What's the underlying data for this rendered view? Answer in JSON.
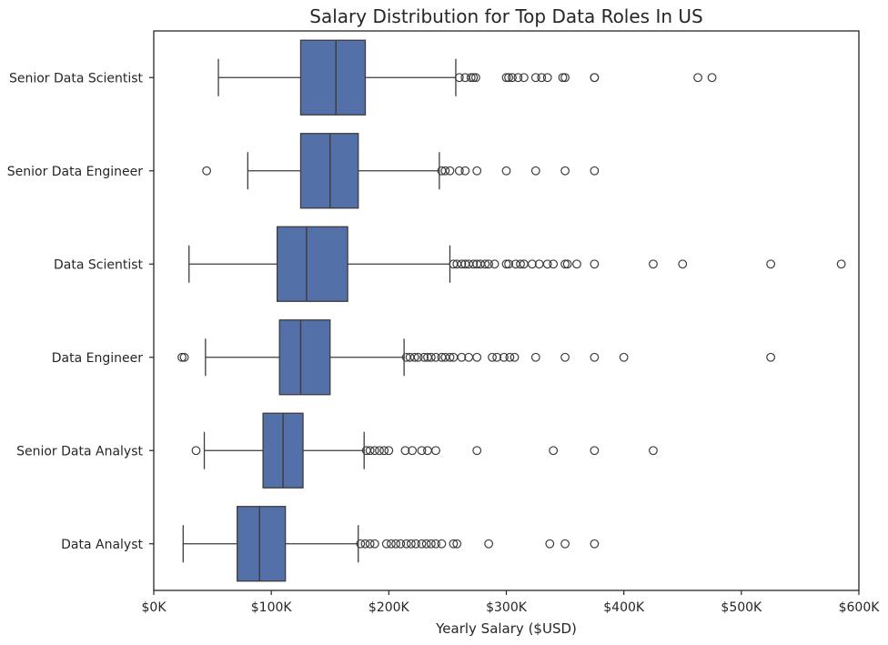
{
  "chart_data": {
    "type": "box",
    "orientation": "horizontal",
    "title": "Salary Distribution for Top Data Roles In US",
    "xlabel": "Yearly Salary ($USD)",
    "ylabel": "",
    "xlim": [
      0,
      600000
    ],
    "xticks": [
      0,
      100000,
      200000,
      300000,
      400000,
      500000,
      600000
    ],
    "xtick_labels": [
      "$0K",
      "$100K",
      "$200K",
      "$300K",
      "$400K",
      "$500K",
      "$600K"
    ],
    "grid": false,
    "box_color": "#5470a8",
    "edge_color": "#3c3c3c",
    "categories": [
      {
        "name": "Senior Data Scientist",
        "whisker_low": 55000,
        "q1": 125000,
        "median": 155000,
        "q3": 180000,
        "whisker_high": 257000,
        "outliers": [
          260000,
          265000,
          270000,
          272000,
          274000,
          300000,
          302000,
          305000,
          310000,
          315000,
          325000,
          330000,
          335000,
          348000,
          350000,
          375000,
          375000,
          463000,
          475000
        ]
      },
      {
        "name": "Senior Data Engineer",
        "whisker_low": 80000,
        "q1": 125000,
        "median": 150000,
        "q3": 174000,
        "whisker_high": 243000,
        "outliers": [
          45000,
          245000,
          248000,
          252000,
          260000,
          265000,
          275000,
          300000,
          325000,
          350000,
          375000
        ]
      },
      {
        "name": "Data Scientist",
        "whisker_low": 30000,
        "q1": 105000,
        "median": 130000,
        "q3": 165000,
        "whisker_high": 252000,
        "outliers": [
          255000,
          258000,
          262000,
          265000,
          268000,
          272000,
          275000,
          278000,
          282000,
          285000,
          290000,
          300000,
          302000,
          308000,
          312000,
          315000,
          322000,
          328000,
          335000,
          340000,
          350000,
          352000,
          360000,
          375000,
          425000,
          450000,
          525000,
          585000
        ]
      },
      {
        "name": "Data Engineer",
        "whisker_low": 44000,
        "q1": 107000,
        "median": 125000,
        "q3": 150000,
        "whisker_high": 213000,
        "outliers": [
          24000,
          26000,
          215000,
          218000,
          222000,
          225000,
          230000,
          233000,
          236000,
          240000,
          245000,
          248000,
          252000,
          255000,
          262000,
          268000,
          275000,
          288000,
          292000,
          298000,
          303000,
          307000,
          325000,
          350000,
          375000,
          400000,
          525000
        ]
      },
      {
        "name": "Senior Data Analyst",
        "whisker_low": 43000,
        "q1": 93000,
        "median": 110000,
        "q3": 127000,
        "whisker_high": 179000,
        "outliers": [
          36000,
          181000,
          184000,
          188000,
          192000,
          196000,
          200000,
          214000,
          220000,
          228000,
          233000,
          240000,
          275000,
          340000,
          375000,
          425000
        ]
      },
      {
        "name": "Data Analyst",
        "whisker_low": 25000,
        "q1": 71000,
        "median": 90000,
        "q3": 112000,
        "whisker_high": 174000,
        "outliers": [
          176000,
          180000,
          184000,
          188000,
          198000,
          202000,
          206000,
          210000,
          215000,
          219000,
          223000,
          228000,
          232000,
          236000,
          240000,
          245000,
          255000,
          258000,
          285000,
          337000,
          350000,
          375000
        ]
      }
    ]
  }
}
